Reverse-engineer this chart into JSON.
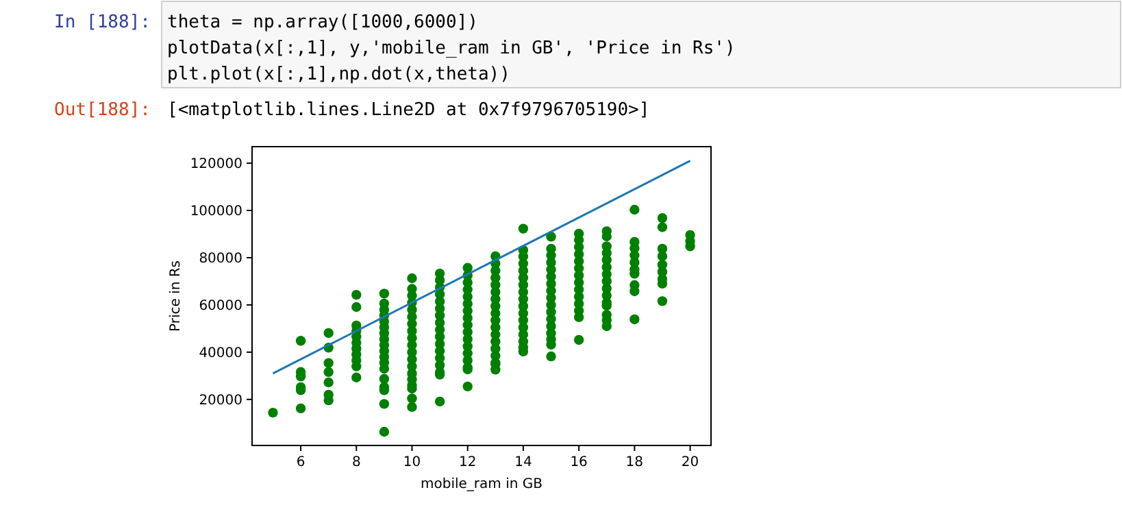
{
  "chart_data": {
    "type": "scatter",
    "xlabel": "mobile_ram in GB",
    "ylabel": "Price in Rs",
    "annotations": [
      "In [188]:",
      "theta = np.array([1000,6000])",
      "plotData(x[:,1], y,'mobile_ram in GB', 'Price in Rs')",
      "plt.plot(x[:,1],np.dot(x,theta))",
      "Out[188]:",
      "[<matplotlib.lines.Line2D at 0x7f9796705190>]"
    ],
    "xlim": [
      4.25,
      20.75
    ],
    "xticks": [
      6,
      8,
      10,
      12,
      14,
      16,
      18,
      20
    ],
    "ylim": [
      500,
      127000
    ],
    "yticks": [
      20000,
      40000,
      60000,
      80000,
      100000,
      120000
    ],
    "grid": false,
    "series": [
      {
        "marker": "circle",
        "color": "#008000",
        "x": [
          5,
          6,
          6,
          6,
          6,
          6,
          6,
          7,
          7,
          7,
          7,
          7,
          7,
          7,
          8,
          8,
          8,
          8,
          8,
          8,
          8,
          8,
          8,
          8,
          8,
          9,
          9,
          9,
          9,
          9,
          9,
          9,
          9,
          9,
          9,
          9,
          9,
          9,
          9,
          9,
          9,
          9,
          9,
          10,
          10,
          10,
          10,
          10,
          10,
          10,
          10,
          10,
          10,
          10,
          10,
          10,
          10,
          10,
          10,
          10,
          10,
          10,
          11,
          11,
          11,
          11,
          11,
          11,
          11,
          11,
          11,
          11,
          11,
          11,
          11,
          11,
          11,
          11,
          11,
          12,
          12,
          12,
          12,
          12,
          12,
          12,
          12,
          12,
          12,
          12,
          12,
          12,
          12,
          12,
          12,
          12,
          13,
          13,
          13,
          13,
          13,
          13,
          13,
          13,
          13,
          13,
          13,
          13,
          13,
          13,
          13,
          13,
          13,
          13,
          14,
          14,
          14,
          14,
          14,
          14,
          14,
          14,
          14,
          14,
          14,
          14,
          14,
          14,
          14,
          14,
          14,
          15,
          15,
          15,
          15,
          15,
          15,
          15,
          15,
          15,
          15,
          15,
          15,
          15,
          15,
          15,
          15,
          15,
          16,
          16,
          16,
          16,
          16,
          16,
          16,
          16,
          16,
          16,
          16,
          16,
          16,
          16,
          17,
          17,
          17,
          17,
          17,
          17,
          17,
          17,
          17,
          17,
          17,
          17,
          17,
          17,
          17,
          18,
          18,
          18,
          18,
          18,
          18,
          18,
          18,
          18,
          18,
          19,
          19,
          19,
          19,
          19,
          19,
          19,
          19,
          19,
          20,
          20,
          20
        ],
        "values": [
          14400,
          44800,
          31600,
          29700,
          25200,
          23900,
          16200,
          48100,
          41900,
          35400,
          31600,
          27200,
          22000,
          19600,
          64300,
          59100,
          51300,
          49000,
          46500,
          44000,
          41500,
          39000,
          36500,
          34000,
          29300,
          64800,
          60600,
          58000,
          55500,
          53000,
          50500,
          48000,
          45500,
          43000,
          40500,
          38000,
          35500,
          33000,
          28700,
          25200,
          23900,
          18100,
          6300,
          71300,
          66800,
          64000,
          61000,
          58000,
          55000,
          52000,
          49000,
          46000,
          43000,
          40000,
          37000,
          34000,
          31000,
          28500,
          26000,
          24600,
          20400,
          16800,
          73300,
          70500,
          67500,
          64500,
          61500,
          58500,
          55500,
          52500,
          49500,
          46500,
          43500,
          40500,
          37500,
          34500,
          31500,
          30500,
          19100,
          75700,
          72500,
          69500,
          66500,
          63500,
          60500,
          57500,
          54500,
          51500,
          48500,
          45500,
          42500,
          39500,
          36500,
          33500,
          32700,
          25500,
          80600,
          77500,
          74500,
          71500,
          68500,
          65500,
          62500,
          59500,
          56500,
          53500,
          50500,
          47500,
          44500,
          41500,
          38500,
          35500,
          34900,
          32600,
          92300,
          83200,
          80500,
          77500,
          74500,
          71500,
          68500,
          65500,
          62500,
          59500,
          56500,
          53500,
          50500,
          47500,
          44500,
          42000,
          40300,
          88900,
          83800,
          81000,
          78000,
          75000,
          72000,
          69000,
          66000,
          63000,
          60000,
          57000,
          54000,
          51000,
          48000,
          45500,
          43200,
          38200,
          90200,
          87500,
          84500,
          81500,
          78500,
          75500,
          72500,
          69500,
          66500,
          63500,
          60500,
          57500,
          54800,
          45200,
          91200,
          89000,
          84800,
          82000,
          79000,
          76000,
          73000,
          70000,
          67000,
          64000,
          61000,
          59700,
          55800,
          53500,
          51000,
          100300,
          86700,
          84000,
          81000,
          78000,
          75000,
          73200,
          68400,
          65800,
          53900,
          96800,
          92900,
          83800,
          80600,
          77000,
          74000,
          71000,
          69000,
          61600,
          89600,
          87000,
          84800
        ]
      },
      {
        "type": "line",
        "color": "#1f77b4",
        "x": [
          5,
          20
        ],
        "values": [
          31000,
          121000
        ]
      }
    ]
  }
}
